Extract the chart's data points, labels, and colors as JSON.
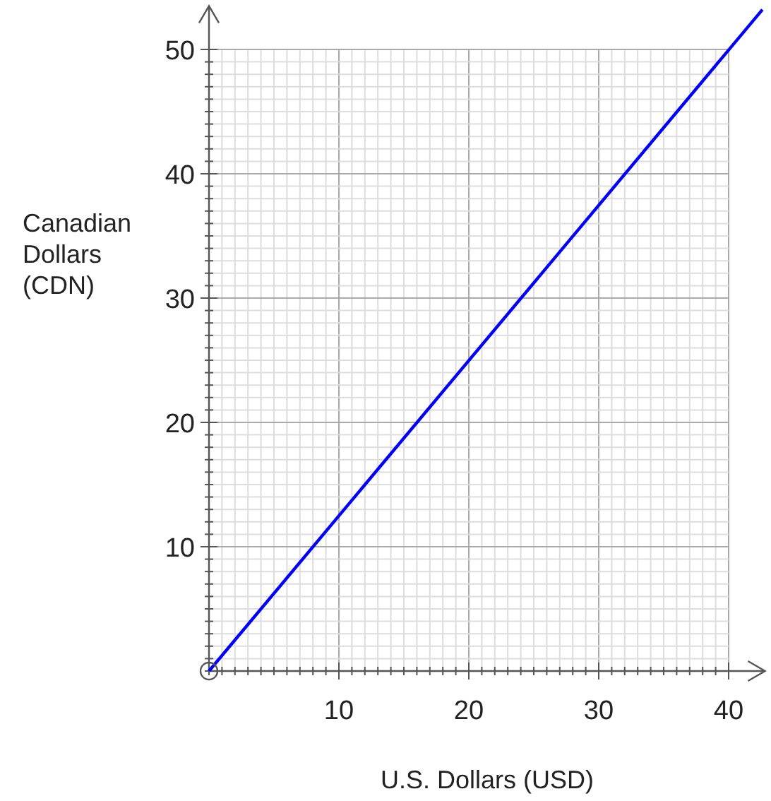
{
  "chart_data": {
    "type": "line",
    "xlabel": "U.S. Dollars (USD)",
    "ylabel": "Canadian Dollars (CDN)",
    "x": [
      0,
      42.6
    ],
    "series": [
      {
        "color": "#0000ff",
        "values": [
          0,
          53.2
        ]
      },
      {
        "type": "scatter",
        "color": "#555555",
        "x": [
          0
        ],
        "values": [
          0
        ]
      }
    ],
    "xlim": [
      0,
      42.8
    ],
    "ylim": [
      0,
      53.5
    ],
    "xticks": [
      {
        "value": 0,
        "label": null
      },
      {
        "value": 1,
        "label": null
      },
      {
        "value": 2,
        "label": null
      },
      {
        "value": 3,
        "label": null
      },
      {
        "value": 4,
        "label": null
      },
      {
        "value": 5,
        "label": null
      },
      {
        "value": 6,
        "label": null
      },
      {
        "value": 7,
        "label": null
      },
      {
        "value": 8,
        "label": null
      },
      {
        "value": 9,
        "label": null
      },
      10,
      {
        "value": 11,
        "label": null
      },
      {
        "value": 12,
        "label": null
      },
      {
        "value": 13,
        "label": null
      },
      {
        "value": 14,
        "label": null
      },
      {
        "value": 15,
        "label": null
      },
      {
        "value": 16,
        "label": null
      },
      {
        "value": 17,
        "label": null
      },
      {
        "value": 18,
        "label": null
      },
      {
        "value": 19,
        "label": null
      },
      20,
      {
        "value": 21,
        "label": null
      },
      {
        "value": 22,
        "label": null
      },
      {
        "value": 23,
        "label": null
      },
      {
        "value": 24,
        "label": null
      },
      {
        "value": 25,
        "label": null
      },
      {
        "value": 26,
        "label": null
      },
      {
        "value": 27,
        "label": null
      },
      {
        "value": 28,
        "label": null
      },
      {
        "value": 29,
        "label": null
      },
      30,
      {
        "value": 31,
        "label": null
      },
      {
        "value": 32,
        "label": null
      },
      {
        "value": 33,
        "label": null
      },
      {
        "value": 34,
        "label": null
      },
      {
        "value": 35,
        "label": null
      },
      {
        "value": 36,
        "label": null
      },
      {
        "value": 37,
        "label": null
      },
      {
        "value": 38,
        "label": null
      },
      {
        "value": 39,
        "label": null
      },
      40
    ],
    "yticks": [
      {
        "value": 0,
        "label": null
      },
      {
        "value": 1,
        "label": null
      },
      {
        "value": 2,
        "label": null
      },
      {
        "value": 3,
        "label": null
      },
      {
        "value": 4,
        "label": null
      },
      {
        "value": 5,
        "label": null
      },
      {
        "value": 6,
        "label": null
      },
      {
        "value": 7,
        "label": null
      },
      {
        "value": 8,
        "label": null
      },
      {
        "value": 9,
        "label": null
      },
      10,
      {
        "value": 11,
        "label": null
      },
      {
        "value": 12,
        "label": null
      },
      {
        "value": 13,
        "label": null
      },
      {
        "value": 14,
        "label": null
      },
      {
        "value": 15,
        "label": null
      },
      {
        "value": 16,
        "label": null
      },
      {
        "value": 17,
        "label": null
      },
      {
        "value": 18,
        "label": null
      },
      {
        "value": 19,
        "label": null
      },
      20,
      {
        "value": 21,
        "label": null
      },
      {
        "value": 22,
        "label": null
      },
      {
        "value": 23,
        "label": null
      },
      {
        "value": 24,
        "label": null
      },
      {
        "value": 25,
        "label": null
      },
      {
        "value": 26,
        "label": null
      },
      {
        "value": 27,
        "label": null
      },
      {
        "value": 28,
        "label": null
      },
      {
        "value": 29,
        "label": null
      },
      30,
      {
        "value": 31,
        "label": null
      },
      {
        "value": 32,
        "label": null
      },
      {
        "value": 33,
        "label": null
      },
      {
        "value": 34,
        "label": null
      },
      {
        "value": 35,
        "label": null
      },
      {
        "value": 36,
        "label": null
      },
      {
        "value": 37,
        "label": null
      },
      {
        "value": 38,
        "label": null
      },
      {
        "value": 39,
        "label": null
      },
      40,
      {
        "value": 41,
        "label": null
      },
      {
        "value": 42,
        "label": null
      },
      {
        "value": 43,
        "label": null
      },
      {
        "value": 44,
        "label": null
      },
      {
        "value": 45,
        "label": null
      },
      {
        "value": 46,
        "label": null
      },
      {
        "value": 47,
        "label": null
      },
      {
        "value": 48,
        "label": null
      },
      {
        "value": 49,
        "label": null
      },
      50
    ],
    "grid": true,
    "line_style": "solid"
  }
}
